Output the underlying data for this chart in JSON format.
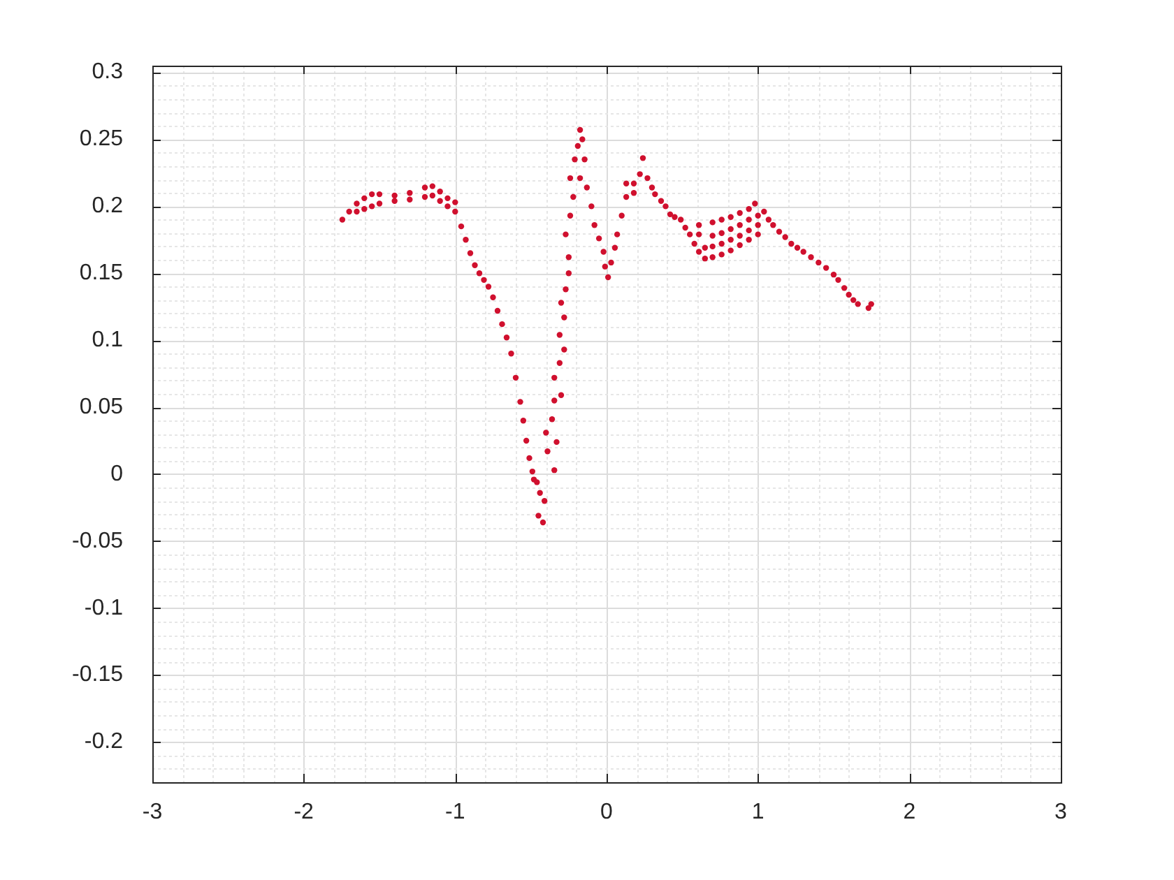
{
  "chart_data": {
    "type": "scatter",
    "color": "#d0102e",
    "marker": "circle",
    "grid": true,
    "xlim": [
      -3,
      3
    ],
    "ylim": [
      -0.23,
      0.305
    ],
    "xticks": [
      -3,
      {
        "value": -2.8,
        "label": null
      },
      {
        "value": -2.6,
        "label": null
      },
      {
        "value": -2.4,
        "label": null
      },
      {
        "value": -2.2,
        "label": null
      },
      -2,
      {
        "value": -1.8,
        "label": null
      },
      {
        "value": -1.6,
        "label": null
      },
      {
        "value": -1.4,
        "label": null
      },
      {
        "value": -1.2,
        "label": null
      },
      -1,
      {
        "value": -0.8,
        "label": null
      },
      {
        "value": -0.6,
        "label": null
      },
      {
        "value": -0.4,
        "label": null
      },
      {
        "value": -0.2,
        "label": null
      },
      0,
      {
        "value": 0.2,
        "label": null
      },
      {
        "value": 0.4,
        "label": null
      },
      {
        "value": 0.6,
        "label": null
      },
      {
        "value": 0.8,
        "label": null
      },
      1,
      {
        "value": 1.2,
        "label": null
      },
      {
        "value": 1.4,
        "label": null
      },
      {
        "value": 1.6,
        "label": null
      },
      {
        "value": 1.8,
        "label": null
      },
      2,
      {
        "value": 2.2,
        "label": null
      },
      {
        "value": 2.4,
        "label": null
      },
      {
        "value": 2.6,
        "label": null
      },
      {
        "value": 2.8,
        "label": null
      },
      3
    ],
    "yticks": [
      {
        "value": -0.22,
        "label": null
      },
      {
        "value": -0.21,
        "label": null
      },
      -0.2,
      {
        "value": -0.19,
        "label": null
      },
      {
        "value": -0.18,
        "label": null
      },
      {
        "value": -0.17,
        "label": null
      },
      {
        "value": -0.16,
        "label": null
      },
      -0.15,
      {
        "value": -0.14,
        "label": null
      },
      {
        "value": -0.13,
        "label": null
      },
      {
        "value": -0.12,
        "label": null
      },
      {
        "value": -0.11,
        "label": null
      },
      -0.1,
      {
        "value": -0.09,
        "label": null
      },
      {
        "value": -0.08,
        "label": null
      },
      {
        "value": -0.07,
        "label": null
      },
      {
        "value": -0.06,
        "label": null
      },
      -0.05,
      {
        "value": -0.04,
        "label": null
      },
      {
        "value": -0.03,
        "label": null
      },
      {
        "value": -0.02,
        "label": null
      },
      {
        "value": -0.01,
        "label": null
      },
      0,
      {
        "value": 0.01,
        "label": null
      },
      {
        "value": 0.02,
        "label": null
      },
      {
        "value": 0.03,
        "label": null
      },
      {
        "value": 0.04,
        "label": null
      },
      0.05,
      {
        "value": 0.06,
        "label": null
      },
      {
        "value": 0.07,
        "label": null
      },
      {
        "value": 0.08,
        "label": null
      },
      {
        "value": 0.09,
        "label": null
      },
      0.1,
      {
        "value": 0.11,
        "label": null
      },
      {
        "value": 0.12,
        "label": null
      },
      {
        "value": 0.13,
        "label": null
      },
      {
        "value": 0.14,
        "label": null
      },
      0.15,
      {
        "value": 0.16,
        "label": null
      },
      {
        "value": 0.17,
        "label": null
      },
      {
        "value": 0.18,
        "label": null
      },
      {
        "value": 0.19,
        "label": null
      },
      0.2,
      {
        "value": 0.21,
        "label": null
      },
      {
        "value": 0.22,
        "label": null
      },
      {
        "value": 0.23,
        "label": null
      },
      {
        "value": 0.24,
        "label": null
      },
      0.25,
      {
        "value": 0.26,
        "label": null
      },
      {
        "value": 0.27,
        "label": null
      },
      {
        "value": 0.28,
        "label": null
      },
      {
        "value": 0.29,
        "label": null
      },
      0.3
    ],
    "x": [
      -1.745,
      -1.7,
      -1.65,
      -1.65,
      -1.6,
      -1.6,
      -1.55,
      -1.55,
      -1.5,
      -1.5,
      -1.4,
      -1.4,
      -1.3,
      -1.3,
      -1.2,
      -1.2,
      -1.15,
      -1.15,
      -1.1,
      -1.1,
      -1.05,
      -1.05,
      -1,
      -1,
      -0.96,
      -0.93,
      -0.9,
      -0.87,
      -0.84,
      -0.81,
      -0.78,
      -0.75,
      -0.72,
      -0.69,
      -0.66,
      -0.63,
      -0.6,
      -0.57,
      -0.55,
      -0.53,
      -0.51,
      -0.49,
      -0.48,
      -0.46,
      -0.44,
      -0.45,
      -0.42,
      -0.41,
      -0.39,
      -0.4,
      -0.36,
      -0.345,
      -0.33,
      -0.345,
      -0.3,
      -0.345,
      -0.31,
      -0.28,
      -0.31,
      -0.28,
      -0.3,
      -0.27,
      -0.25,
      -0.25,
      -0.27,
      -0.24,
      -0.22,
      -0.24,
      -0.21,
      -0.19,
      -0.175,
      -0.16,
      -0.145,
      -0.175,
      -0.13,
      -0.1,
      -0.08,
      -0.05,
      -0.02,
      -0.01,
      0.01,
      0.03,
      0.055,
      0.07,
      0.1,
      0.13,
      0.13,
      0.18,
      0.18,
      0.22,
      0.24,
      0.27,
      0.3,
      0.32,
      0.36,
      0.39,
      0.42,
      0.45,
      0.49,
      0.52,
      0.55,
      0.58,
      0.61,
      0.65,
      0.7,
      0.76,
      0.82,
      0.88,
      0.94,
      1,
      0.65,
      0.7,
      0.76,
      0.82,
      0.88,
      0.94,
      1,
      0.61,
      0.7,
      0.76,
      0.82,
      0.88,
      0.94,
      1,
      0.61,
      0.7,
      0.76,
      0.82,
      0.88,
      0.94,
      0.98,
      1.04,
      1.07,
      1.1,
      1.14,
      1.18,
      1.22,
      1.26,
      1.3,
      1.35,
      1.4,
      1.45,
      1.5,
      1.53,
      1.57,
      1.6,
      1.63,
      1.66,
      1.73,
      1.748
    ],
    "values": [
      0.19,
      0.196,
      0.196,
      0.202,
      0.198,
      0.206,
      0.2,
      0.209,
      0.202,
      0.209,
      0.204,
      0.208,
      0.205,
      0.21,
      0.207,
      0.214,
      0.208,
      0.215,
      0.204,
      0.211,
      0.2,
      0.206,
      0.196,
      0.203,
      0.185,
      0.175,
      0.165,
      0.156,
      0.15,
      0.145,
      0.14,
      0.132,
      0.122,
      0.112,
      0.102,
      0.09,
      0.072,
      0.054,
      0.04,
      0.025,
      0.012,
      0.002,
      -0.004,
      -0.006,
      -0.014,
      -0.031,
      -0.036,
      -0.02,
      0.017,
      0.031,
      0.041,
      0.003,
      0.024,
      0.055,
      0.059,
      0.072,
      0.083,
      0.093,
      0.104,
      0.117,
      0.128,
      0.138,
      0.15,
      0.162,
      0.179,
      0.193,
      0.207,
      0.221,
      0.235,
      0.245,
      0.257,
      0.25,
      0.235,
      0.221,
      0.214,
      0.2,
      0.186,
      0.176,
      0.166,
      0.155,
      0.147,
      0.158,
      0.169,
      0.179,
      0.193,
      0.207,
      0.217,
      0.217,
      0.21,
      0.224,
      0.236,
      0.221,
      0.214,
      0.209,
      0.204,
      0.2,
      0.194,
      0.192,
      0.19,
      0.184,
      0.179,
      0.172,
      0.166,
      0.161,
      0.162,
      0.164,
      0.167,
      0.171,
      0.175,
      0.179,
      0.169,
      0.17,
      0.172,
      0.175,
      0.178,
      0.182,
      0.186,
      0.179,
      0.178,
      0.18,
      0.183,
      0.186,
      0.19,
      0.193,
      0.186,
      0.188,
      0.19,
      0.192,
      0.195,
      0.198,
      0.202,
      0.196,
      0.19,
      0.186,
      0.181,
      0.177,
      0.172,
      0.169,
      0.166,
      0.162,
      0.158,
      0.154,
      0.149,
      0.145,
      0.139,
      0.134,
      0.13,
      0.127,
      0.124,
      0.127
    ]
  }
}
